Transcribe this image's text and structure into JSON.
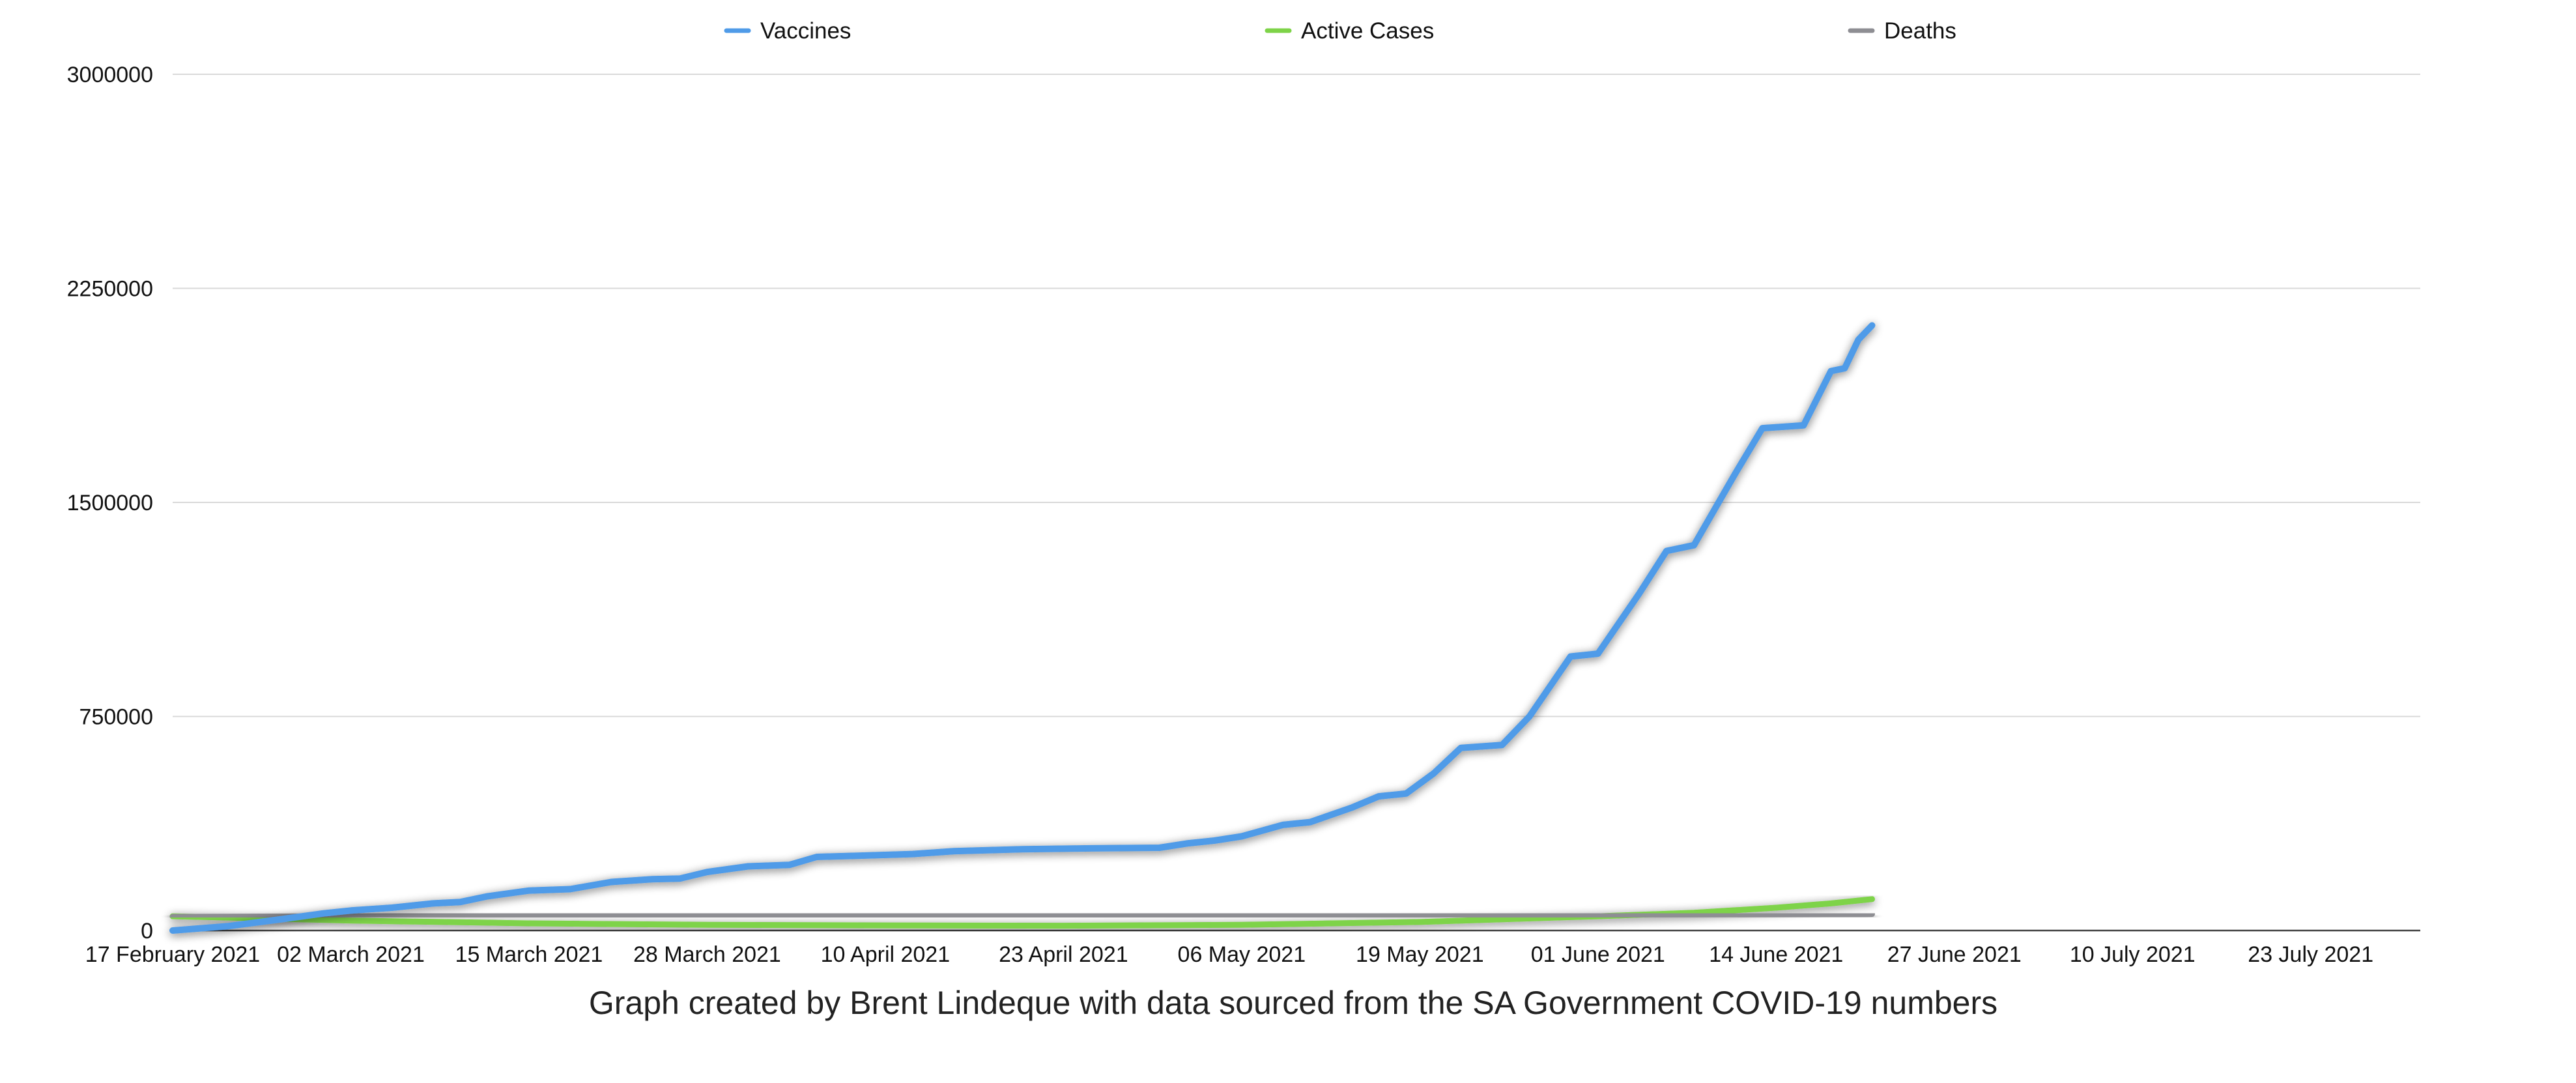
{
  "chart_data": {
    "type": "line",
    "title": "",
    "xlabel": "",
    "ylabel": "",
    "caption": "Graph created by Brent Lindeque with data sourced from the SA Government COVID-19 numbers",
    "grid": true,
    "legend_position": "top-center",
    "xlim": [
      "2021-02-17",
      "2021-07-31"
    ],
    "ylim": [
      0,
      3000000
    ],
    "y_ticks": [
      {
        "value": 0,
        "label": "0"
      },
      {
        "value": 750000,
        "label": "750000"
      },
      {
        "value": 1500000,
        "label": "1500000"
      },
      {
        "value": 2250000,
        "label": "2250000"
      },
      {
        "value": 3000000,
        "label": "3000000"
      }
    ],
    "x_ticks": [
      {
        "date": "2021-02-17",
        "label": "17 February 2021"
      },
      {
        "date": "2021-03-02",
        "label": "02 March 2021"
      },
      {
        "date": "2021-03-15",
        "label": "15 March 2021"
      },
      {
        "date": "2021-03-28",
        "label": "28 March 2021"
      },
      {
        "date": "2021-04-10",
        "label": "10 April 2021"
      },
      {
        "date": "2021-04-23",
        "label": "23 April 2021"
      },
      {
        "date": "2021-05-06",
        "label": "06 May 2021"
      },
      {
        "date": "2021-05-19",
        "label": "19 May 2021"
      },
      {
        "date": "2021-06-01",
        "label": "01 June 2021"
      },
      {
        "date": "2021-06-14",
        "label": "14 June 2021"
      },
      {
        "date": "2021-06-27",
        "label": "27 June 2021"
      },
      {
        "date": "2021-07-10",
        "label": "10 July 2021"
      },
      {
        "date": "2021-07-23",
        "label": "23 July 2021"
      }
    ],
    "series": [
      {
        "name": "Vaccines",
        "color": "#4f9be8",
        "points": [
          [
            "2021-02-17",
            0
          ],
          [
            "2021-02-21",
            15000
          ],
          [
            "2021-02-25",
            40000
          ],
          [
            "2021-02-28",
            60000
          ],
          [
            "2021-03-02",
            70000
          ],
          [
            "2021-03-05",
            80000
          ],
          [
            "2021-03-08",
            95000
          ],
          [
            "2021-03-10",
            100000
          ],
          [
            "2021-03-12",
            120000
          ],
          [
            "2021-03-15",
            140000
          ],
          [
            "2021-03-18",
            145000
          ],
          [
            "2021-03-21",
            170000
          ],
          [
            "2021-03-24",
            180000
          ],
          [
            "2021-03-26",
            182000
          ],
          [
            "2021-03-28",
            205000
          ],
          [
            "2021-03-31",
            225000
          ],
          [
            "2021-04-03",
            230000
          ],
          [
            "2021-04-05",
            258000
          ],
          [
            "2021-04-08",
            262000
          ],
          [
            "2021-04-12",
            268000
          ],
          [
            "2021-04-15",
            278000
          ],
          [
            "2021-04-20",
            285000
          ],
          [
            "2021-04-25",
            288000
          ],
          [
            "2021-04-30",
            290000
          ],
          [
            "2021-05-02",
            305000
          ],
          [
            "2021-05-04",
            315000
          ],
          [
            "2021-05-06",
            330000
          ],
          [
            "2021-05-09",
            370000
          ],
          [
            "2021-05-11",
            380000
          ],
          [
            "2021-05-14",
            430000
          ],
          [
            "2021-05-16",
            470000
          ],
          [
            "2021-05-18",
            480000
          ],
          [
            "2021-05-20",
            550000
          ],
          [
            "2021-05-22",
            640000
          ],
          [
            "2021-05-25",
            650000
          ],
          [
            "2021-05-27",
            750000
          ],
          [
            "2021-05-30",
            960000
          ],
          [
            "2021-06-01",
            970000
          ],
          [
            "2021-06-04",
            1180000
          ],
          [
            "2021-06-06",
            1330000
          ],
          [
            "2021-06-08",
            1350000
          ],
          [
            "2021-06-11",
            1600000
          ],
          [
            "2021-06-13",
            1760000
          ],
          [
            "2021-06-16",
            1770000
          ],
          [
            "2021-06-18",
            1960000
          ],
          [
            "2021-06-19",
            1970000
          ],
          [
            "2021-06-20",
            2070000
          ],
          [
            "2021-06-21",
            2120000
          ]
        ]
      },
      {
        "name": "Active Cases",
        "color": "#7ed348",
        "points": [
          [
            "2021-02-17",
            50000
          ],
          [
            "2021-03-02",
            35000
          ],
          [
            "2021-03-15",
            25000
          ],
          [
            "2021-03-28",
            20000
          ],
          [
            "2021-04-10",
            18000
          ],
          [
            "2021-04-23",
            17000
          ],
          [
            "2021-05-06",
            20000
          ],
          [
            "2021-05-19",
            30000
          ],
          [
            "2021-06-01",
            50000
          ],
          [
            "2021-06-08",
            62000
          ],
          [
            "2021-06-14",
            80000
          ],
          [
            "2021-06-18",
            95000
          ],
          [
            "2021-06-21",
            110000
          ]
        ]
      },
      {
        "name": "Deaths",
        "color": "#8e8e93",
        "points": [
          [
            "2021-02-17",
            48000
          ],
          [
            "2021-03-02",
            50000
          ],
          [
            "2021-04-10",
            53000
          ],
          [
            "2021-05-19",
            55000
          ],
          [
            "2021-06-21",
            58000
          ]
        ]
      }
    ]
  }
}
